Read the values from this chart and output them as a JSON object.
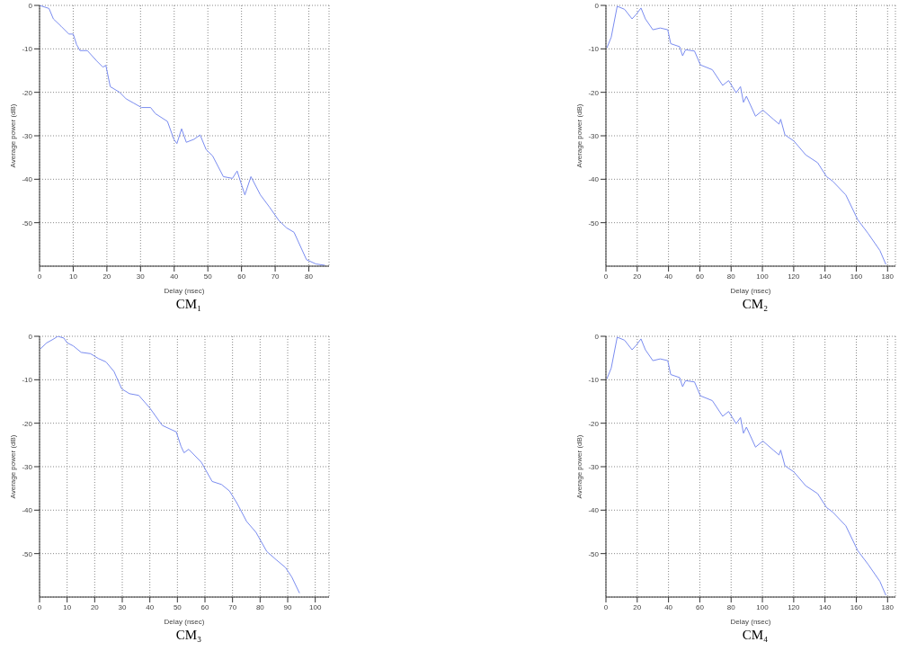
{
  "chart_data": [
    {
      "type": "line",
      "title": "CM₁",
      "xlabel": "Delay (nsec)",
      "ylabel": "Average power (dB)",
      "color": "#7a8cf0",
      "grid": true,
      "xlim": [
        0,
        86
      ],
      "xticks": [
        0,
        10,
        20,
        30,
        40,
        50,
        60,
        70,
        80
      ],
      "ylim": [
        -60,
        0
      ],
      "yticks": [
        -50,
        -40,
        -30,
        -20,
        -10,
        0
      ],
      "x": [
        0,
        2.8,
        4.1,
        6.4,
        8.7,
        10,
        11,
        12,
        14.2,
        17,
        18.8,
        19.7,
        21,
        23.8,
        25.7,
        28,
        30.3,
        33,
        34.4,
        38,
        39.9,
        40.8,
        42.2,
        43.6,
        45.9,
        47.7,
        49.5,
        51.4,
        54.6,
        57.3,
        58.7,
        60.1,
        61,
        62.8,
        65.6,
        68.3,
        71.1,
        73.4,
        75.6,
        79.3,
        82.1,
        84.8
      ],
      "values": [
        0,
        -0.7,
        -3.1,
        -4.8,
        -6.6,
        -6.6,
        -9,
        -10.4,
        -10.4,
        -12.8,
        -14.2,
        -13.8,
        -18.7,
        -20,
        -21.5,
        -22.5,
        -23.5,
        -23.5,
        -24.9,
        -26.7,
        -30.8,
        -31.8,
        -28.4,
        -31.5,
        -30.8,
        -29.8,
        -33.2,
        -34.6,
        -39.4,
        -39.8,
        -38.1,
        -41.5,
        -43.6,
        -39.4,
        -43.6,
        -46.4,
        -49.5,
        -51.2,
        -52.2,
        -58.5,
        -59.5,
        -59.8
      ]
    },
    {
      "type": "line",
      "title": "CM₂",
      "xlabel": "Delay (nsec)",
      "ylabel": "Average power (dB)",
      "color": "#7a8cf0",
      "grid": true,
      "xlim": [
        0,
        185
      ],
      "xticks": [
        0,
        20,
        40,
        60,
        80,
        100,
        120,
        140,
        160,
        180
      ],
      "ylim": [
        -60,
        0
      ],
      "yticks": [
        -50,
        -40,
        -30,
        -20,
        -10,
        0
      ],
      "x": [
        0.6,
        3.4,
        7.2,
        11.9,
        16.7,
        19.5,
        22.4,
        25.2,
        30,
        34.7,
        39.5,
        41.4,
        47.1,
        49,
        50.9,
        56.6,
        60.4,
        68,
        74.6,
        78.4,
        83.2,
        86,
        87.9,
        89.8,
        95.6,
        100.3,
        107,
        110.6,
        111.7,
        114.4,
        120.1,
        127.7,
        135.3,
        141,
        144.8,
        153.3,
        160.9,
        167.6,
        175.1,
        178.9
      ],
      "values": [
        -9.8,
        -7.3,
        -0.2,
        -0.9,
        -3.1,
        -2,
        -0.6,
        -3.1,
        -5.6,
        -5.2,
        -5.6,
        -8.8,
        -9.5,
        -11.6,
        -10.2,
        -10.5,
        -13.7,
        -14.8,
        -18.4,
        -17.3,
        -20.1,
        -18.7,
        -22.3,
        -20.9,
        -25.5,
        -24.1,
        -26.2,
        -27.3,
        -26.2,
        -29.8,
        -31.2,
        -34.4,
        -36.2,
        -39.4,
        -40.4,
        -43.6,
        -49.3,
        -52.5,
        -56.4,
        -59.6
      ]
    },
    {
      "type": "line",
      "title": "CM₃",
      "xlabel": "Delay (nsec)",
      "ylabel": "Average power (dB)",
      "color": "#7a8cf0",
      "grid": true,
      "xlim": [
        0,
        105
      ],
      "xticks": [
        0,
        10,
        20,
        30,
        40,
        50,
        60,
        70,
        80,
        90,
        100
      ],
      "ylim": [
        -60,
        0
      ],
      "yticks": [
        -50,
        -40,
        -30,
        -20,
        -10,
        0
      ],
      "x": [
        0.3,
        2.6,
        4.9,
        6.6,
        8.8,
        10,
        12.2,
        15.1,
        18.5,
        21.3,
        24.1,
        27,
        29.8,
        32.6,
        36,
        40,
        44.5,
        49.6,
        51.3,
        52.4,
        54.1,
        58.7,
        62.6,
        66,
        68.9,
        71.7,
        75.1,
        78.5,
        82.4,
        85.8,
        89.2,
        91.5,
        94.3
      ],
      "values": [
        -2.9,
        -1.5,
        -0.7,
        0,
        -0.4,
        -1.5,
        -2.2,
        -3.7,
        -4,
        -5.1,
        -5.9,
        -8.1,
        -12.1,
        -13.2,
        -13.6,
        -16.5,
        -20.5,
        -22,
        -25.3,
        -26.8,
        -26,
        -29,
        -33.4,
        -34.1,
        -35.6,
        -38.5,
        -42.6,
        -45.1,
        -49.5,
        -51.4,
        -53.2,
        -55.4,
        -59.1
      ]
    },
    {
      "type": "line",
      "title": "CM₄",
      "xlabel": "Delay (nsec)",
      "ylabel": "Average power (dB)",
      "color": "#7a8cf0",
      "grid": true,
      "xlim": [
        0,
        185
      ],
      "xticks": [
        0,
        20,
        40,
        60,
        80,
        100,
        120,
        140,
        160,
        180
      ],
      "ylim": [
        -60,
        0
      ],
      "yticks": [
        -50,
        -40,
        -30,
        -20,
        -10,
        0
      ],
      "x": [
        0.6,
        3.4,
        7.2,
        11.9,
        16.7,
        19.5,
        22.4,
        25.2,
        30,
        34.7,
        39.5,
        41.4,
        47.1,
        49,
        50.9,
        56.6,
        60.4,
        68,
        74.6,
        78.4,
        83.2,
        86,
        87.9,
        89.8,
        95.6,
        100.3,
        107,
        110.6,
        111.7,
        114.4,
        120.1,
        127.7,
        135.3,
        141,
        144.8,
        153.3,
        160.9,
        167.6,
        175.1,
        178.9
      ],
      "values": [
        -9.8,
        -7.3,
        -0.2,
        -0.9,
        -3.1,
        -2,
        -0.6,
        -3.1,
        -5.6,
        -5.2,
        -5.6,
        -8.8,
        -9.5,
        -11.6,
        -10.2,
        -10.5,
        -13.7,
        -14.8,
        -18.4,
        -17.3,
        -20.1,
        -18.7,
        -22.3,
        -20.9,
        -25.5,
        -24.1,
        -26.2,
        -27.3,
        -26.2,
        -29.8,
        -31.2,
        -34.4,
        -36.2,
        -39.4,
        -40.4,
        -43.6,
        -49.3,
        -52.5,
        -56.4,
        -59.6
      ]
    }
  ]
}
